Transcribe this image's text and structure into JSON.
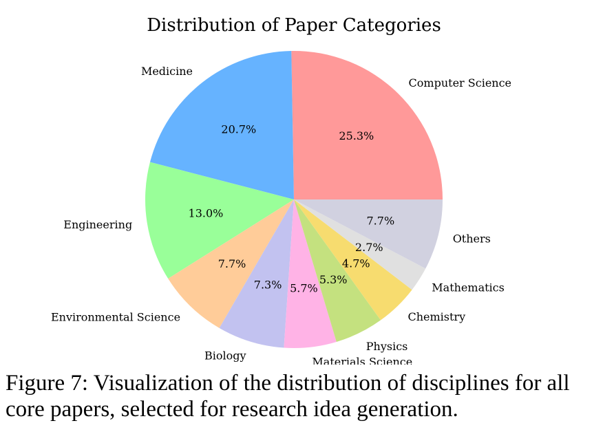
{
  "chart_data": {
    "type": "pie",
    "title": "Distribution of Paper Categories",
    "start_angle": 0,
    "direction": "counterclockwise",
    "slices": [
      {
        "label": "Computer Science",
        "value": 25.3,
        "pct_label": "25.3%",
        "color": "#ff9999"
      },
      {
        "label": "Medicine",
        "value": 20.7,
        "pct_label": "20.7%",
        "color": "#66b3ff"
      },
      {
        "label": "Engineering",
        "value": 13.0,
        "pct_label": "13.0%",
        "color": "#99ff99"
      },
      {
        "label": "Environmental Science",
        "value": 7.7,
        "pct_label": "7.7%",
        "color": "#ffcc99"
      },
      {
        "label": "Biology",
        "value": 7.3,
        "pct_label": "7.3%",
        "color": "#c2c2f0"
      },
      {
        "label": "Materials Science",
        "value": 5.7,
        "pct_label": "5.7%",
        "color": "#ffb3e6"
      },
      {
        "label": "Physics",
        "value": 5.3,
        "pct_label": "5.3%",
        "color": "#c4e17f"
      },
      {
        "label": "Chemistry",
        "value": 4.7,
        "pct_label": "4.7%",
        "color": "#f7dc6f"
      },
      {
        "label": "Mathematics",
        "value": 2.7,
        "pct_label": "2.7%",
        "color": "#e0e0e0"
      },
      {
        "label": "Others",
        "value": 7.7,
        "pct_label": "7.7%",
        "color": "#d1d1e0"
      }
    ]
  },
  "caption": "Figure 7: Visualization of the distribution of disciplines for all core papers, selected for research idea generation."
}
